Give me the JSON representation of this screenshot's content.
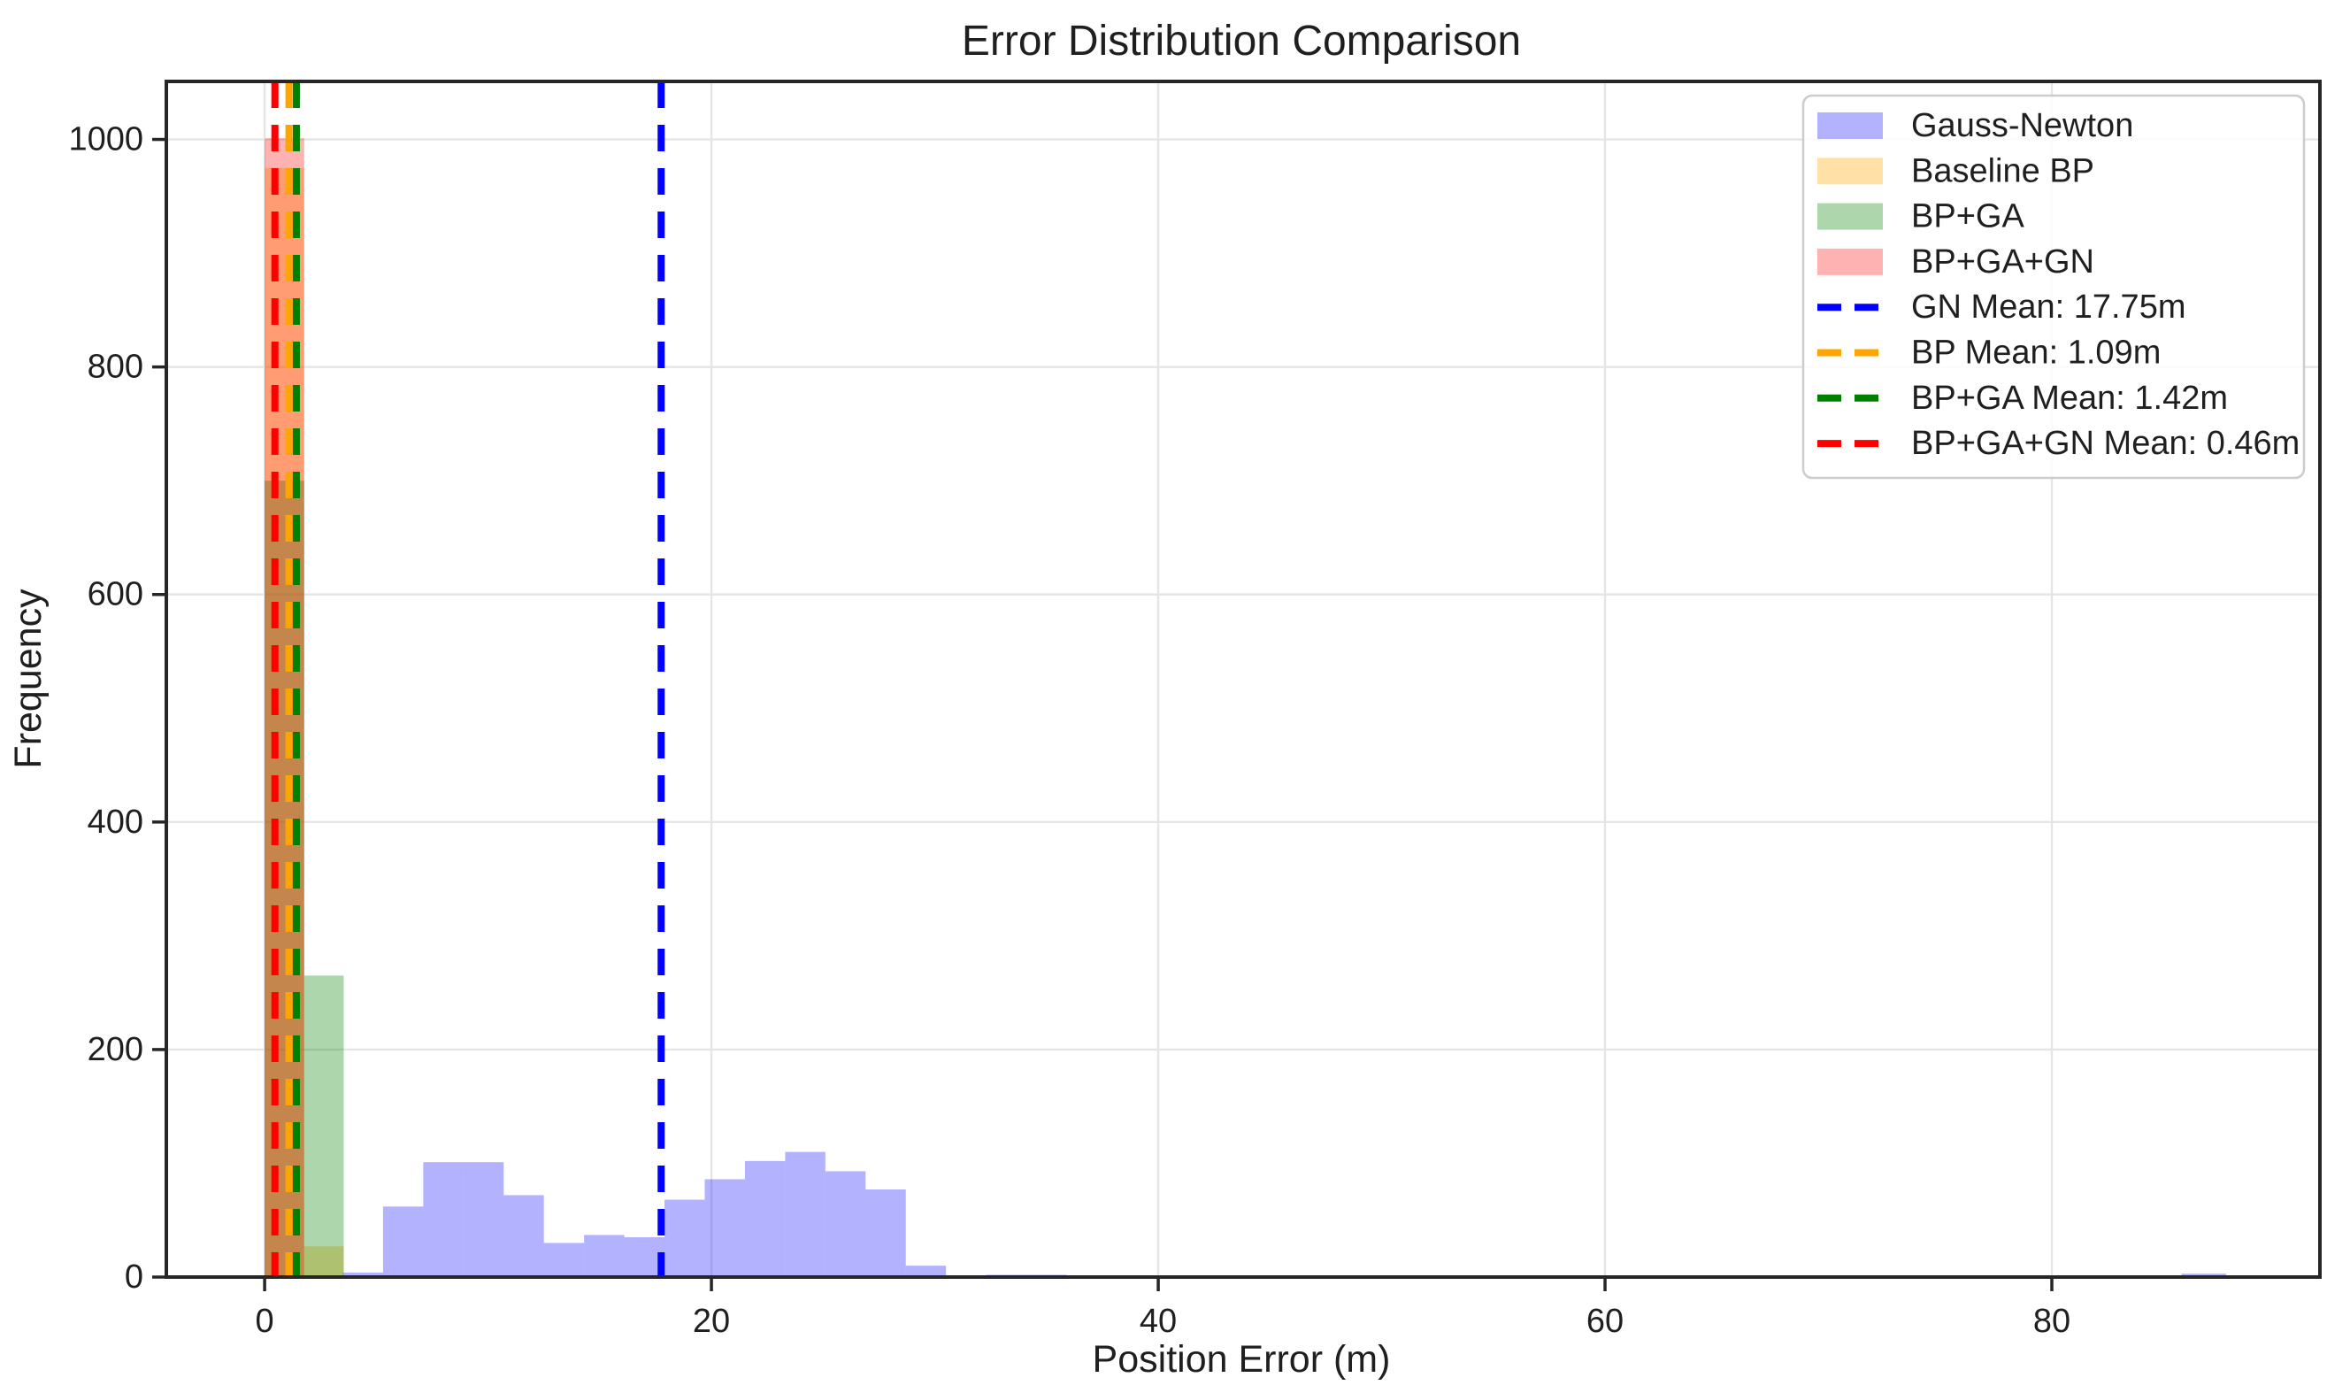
{
  "title": "Error Distribution Comparison",
  "xlabel": "Position Error (m)",
  "ylabel": "Frequency",
  "chart_data": {
    "type": "bar",
    "subtype": "overlaid-histograms",
    "title": "Error Distribution Comparison",
    "xlabel": "Position Error (m)",
    "ylabel": "Frequency",
    "xlim": [
      -4.4,
      92
    ],
    "ylim": [
      0,
      1051
    ],
    "xticks": [
      0,
      20,
      40,
      60,
      80
    ],
    "yticks": [
      0,
      200,
      400,
      600,
      800,
      1000
    ],
    "grid": true,
    "grid_color": "#e5e5e5",
    "legend_position": "upper right",
    "series": [
      {
        "name": "Gauss-Newton",
        "color": "#0000ff",
        "alpha": 0.3,
        "bars": [
          [
            3.5,
            5.3,
            4
          ],
          [
            5.3,
            7.1,
            62
          ],
          [
            7.1,
            8.9,
            101
          ],
          [
            8.9,
            10.7,
            101
          ],
          [
            10.7,
            12.5,
            72
          ],
          [
            12.5,
            14.3,
            30
          ],
          [
            14.3,
            16.1,
            37
          ],
          [
            16.1,
            17.9,
            35
          ],
          [
            17.9,
            19.7,
            68
          ],
          [
            19.7,
            21.5,
            86
          ],
          [
            21.5,
            23.3,
            102
          ],
          [
            23.3,
            25.1,
            110
          ],
          [
            25.1,
            26.9,
            93
          ],
          [
            26.9,
            28.7,
            77
          ],
          [
            28.7,
            30.5,
            10
          ],
          [
            32.3,
            35.9,
            2
          ],
          [
            85.8,
            87.8,
            3
          ]
        ]
      },
      {
        "name": "Baseline BP",
        "color": "#ffa500",
        "alpha": 0.35,
        "bars": [
          [
            0,
            1.77,
            975
          ],
          [
            1.77,
            3.54,
            27
          ]
        ]
      },
      {
        "name": "BP+GA",
        "color": "#008000",
        "alpha": 0.32,
        "bars": [
          [
            0,
            1.77,
            700
          ],
          [
            1.77,
            3.54,
            265
          ]
        ]
      },
      {
        "name": "BP+GA+GN",
        "color": "#ff0000",
        "alpha": 0.3,
        "bars": [
          [
            0,
            1.77,
            1001
          ]
        ]
      }
    ],
    "mean_lines": [
      {
        "label": "GN Mean: 17.75m",
        "value": 17.75,
        "color": "#0000ff"
      },
      {
        "label": "BP Mean: 1.09m",
        "value": 1.09,
        "color": "#ffa500"
      },
      {
        "label": "BP+GA Mean: 1.42m",
        "value": 1.42,
        "color": "#008000"
      },
      {
        "label": "BP+GA+GN Mean: 0.46m",
        "value": 0.46,
        "color": "#ff0000"
      }
    ]
  }
}
